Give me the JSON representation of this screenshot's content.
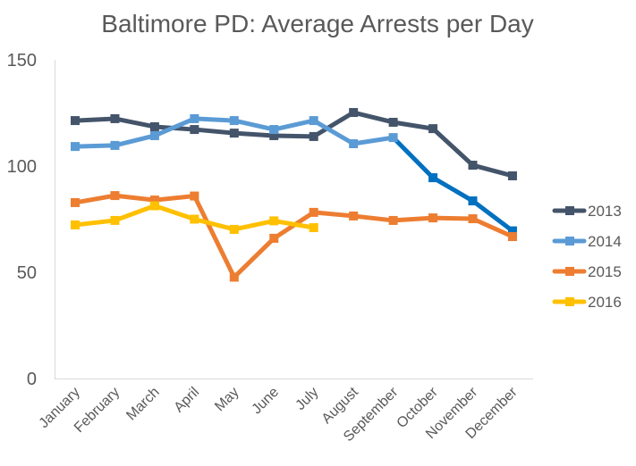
{
  "chart_data": {
    "type": "line",
    "title": "Baltimore PD: Average Arrests per Day",
    "xlabel": "",
    "ylabel": "",
    "ylim": [
      0,
      150
    ],
    "yticks": [
      0,
      50,
      100,
      150
    ],
    "grid": false,
    "legend_position": "right",
    "categories": [
      "January",
      "February",
      "March",
      "April",
      "May",
      "June",
      "July",
      "August",
      "September",
      "October",
      "November",
      "December"
    ],
    "series": [
      {
        "name": "2013",
        "color": "#44546A",
        "values": [
          121.4,
          122.3,
          118.5,
          117.2,
          115.5,
          114.3,
          113.9,
          125.2,
          120.6,
          117.6,
          100.4,
          95.4
        ]
      },
      {
        "name": "2014",
        "color": "#5B9BD5",
        "highlight_color": "#0070C0",
        "highlight_from_index": 8,
        "values": [
          109.2,
          109.7,
          114.3,
          122.3,
          121.4,
          117.2,
          121.4,
          110.5,
          113.4,
          94.5,
          83.6,
          69.5
        ]
      },
      {
        "name": "2015",
        "color": "#ED7D31",
        "values": [
          82.8,
          86.1,
          84.0,
          85.9,
          47.7,
          66.0,
          78.2,
          76.5,
          74.4,
          75.6,
          75.2,
          66.8
        ]
      },
      {
        "name": "2016",
        "color": "#FFC000",
        "values": [
          72.3,
          74.4,
          81.3,
          75.0,
          70.2,
          74.2,
          71.0,
          null,
          null,
          null,
          null,
          null
        ]
      }
    ]
  }
}
